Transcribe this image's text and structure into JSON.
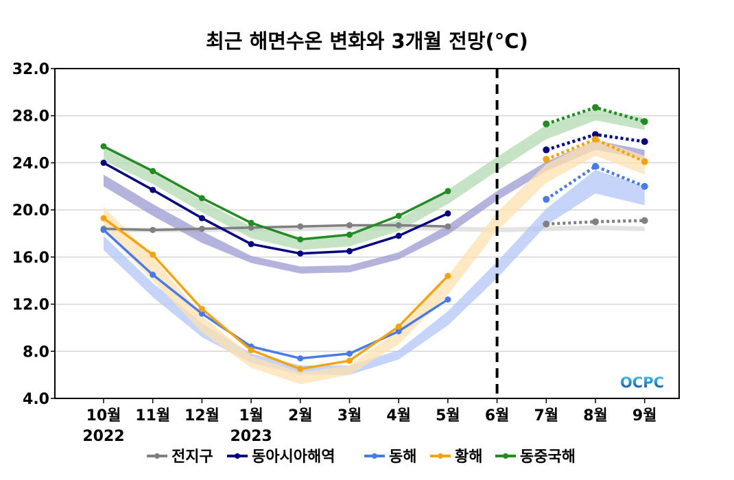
{
  "chart_data": {
    "type": "line",
    "title": "최근 해면수온 변화와 3개월 전망(°C)",
    "xlabel": "",
    "ylabel": "",
    "ylim": [
      4.0,
      32.0
    ],
    "yticks": [
      "4.0",
      "8.0",
      "12.0",
      "16.0",
      "20.0",
      "24.0",
      "28.0",
      "32.0"
    ],
    "ytick_values": [
      4,
      8,
      12,
      16,
      20,
      24,
      28,
      32
    ],
    "categories": [
      "10월",
      "11월",
      "12월",
      "1월",
      "2월",
      "3월",
      "4월",
      "5월",
      "6월",
      "7월",
      "8월",
      "9월"
    ],
    "year_labels": [
      {
        "index": 0,
        "label": "2022"
      },
      {
        "index": 3,
        "label": "2023"
      }
    ],
    "divider_index": 8,
    "grid": "horizontal",
    "legend_position": "bottom",
    "watermark": "OCPC",
    "series": [
      {
        "name": "전지구",
        "color": "#808080",
        "band_color": "#d9d9d9",
        "observed": [
          18.4,
          18.3,
          18.4,
          18.5,
          18.6,
          18.7,
          18.7,
          18.6,
          null,
          null,
          null,
          null
        ],
        "forecast": [
          null,
          null,
          null,
          null,
          null,
          null,
          null,
          null,
          null,
          18.8,
          19.0,
          19.1
        ],
        "climatology_low": [
          18.1,
          18.1,
          18.1,
          18.2,
          18.2,
          18.3,
          18.3,
          18.2,
          18.1,
          18.2,
          18.3,
          18.2
        ],
        "climatology_high": [
          18.5,
          18.5,
          18.5,
          18.6,
          18.6,
          18.7,
          18.7,
          18.6,
          18.5,
          18.6,
          18.7,
          18.6
        ]
      },
      {
        "name": "동아시아해역",
        "color": "#000080",
        "band_color": "#9a9ad2",
        "observed": [
          24.0,
          21.7,
          19.3,
          17.1,
          16.3,
          16.5,
          17.8,
          19.7,
          null,
          null,
          null,
          null
        ],
        "forecast": [
          null,
          null,
          null,
          null,
          null,
          null,
          null,
          null,
          null,
          25.1,
          26.4,
          25.8
        ],
        "climatology_low": [
          22.0,
          19.5,
          17.2,
          15.5,
          14.6,
          14.7,
          15.8,
          17.9,
          20.8,
          23.3,
          25.1,
          24.3
        ],
        "climatology_high": [
          23.0,
          20.5,
          18.2,
          16.1,
          15.2,
          15.3,
          16.4,
          18.7,
          21.6,
          24.1,
          25.9,
          25.1
        ]
      },
      {
        "name": "동해",
        "color": "#4a7ae8",
        "band_color": "#b3c6f7",
        "observed": [
          18.3,
          14.5,
          11.2,
          8.4,
          7.4,
          7.8,
          9.7,
          12.4,
          null,
          null,
          null,
          null
        ],
        "forecast": [
          null,
          null,
          null,
          null,
          null,
          null,
          null,
          null,
          null,
          20.9,
          23.7,
          22.0
        ],
        "climatology_low": [
          16.6,
          12.6,
          9.2,
          7.0,
          6.0,
          6.0,
          7.3,
          10.2,
          14.2,
          18.7,
          21.4,
          20.4
        ],
        "climatology_high": [
          17.8,
          13.8,
          10.4,
          7.8,
          6.8,
          6.8,
          8.1,
          11.4,
          15.6,
          20.1,
          23.4,
          22.0
        ]
      },
      {
        "name": "황해",
        "color": "#f5a30b",
        "band_color": "#fde2b0",
        "observed": [
          19.3,
          16.2,
          11.6,
          8.1,
          6.5,
          7.2,
          10.1,
          14.4,
          null,
          null,
          null,
          null
        ],
        "forecast": [
          null,
          null,
          null,
          null,
          null,
          null,
          null,
          null,
          null,
          24.3,
          26.0,
          24.1
        ],
        "climatology_low": [
          18.3,
          14.0,
          9.6,
          6.6,
          5.2,
          6.0,
          8.6,
          12.8,
          18.2,
          22.3,
          24.6,
          23.0
        ],
        "climatology_high": [
          20.3,
          16.0,
          11.0,
          7.6,
          6.2,
          6.8,
          9.8,
          14.4,
          19.8,
          23.9,
          26.0,
          24.6
        ]
      },
      {
        "name": "동중국해",
        "color": "#228b22",
        "band_color": "#b3dab3",
        "observed": [
          25.4,
          23.3,
          21.0,
          18.9,
          17.5,
          17.9,
          19.5,
          21.6,
          null,
          null,
          null,
          null
        ],
        "forecast": [
          null,
          null,
          null,
          null,
          null,
          null,
          null,
          null,
          null,
          27.3,
          28.7,
          27.5
        ],
        "climatology_low": [
          24.2,
          22.2,
          19.8,
          17.6,
          16.6,
          16.9,
          18.2,
          20.5,
          23.3,
          26.0,
          27.6,
          26.8
        ],
        "climatology_high": [
          25.4,
          23.2,
          20.8,
          18.6,
          17.6,
          17.9,
          19.2,
          21.7,
          24.5,
          27.2,
          28.6,
          27.8
        ]
      }
    ]
  }
}
